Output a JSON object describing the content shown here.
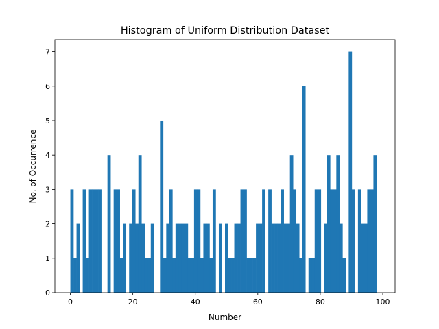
{
  "chart_data": {
    "type": "bar",
    "title": "Histogram of Uniform Distribution Dataset",
    "xlabel": "Number",
    "ylabel": "No. of Occurrence",
    "xlim": [
      -4.95,
      103.95
    ],
    "ylim": [
      0,
      7.35
    ],
    "xticks": [
      0,
      20,
      40,
      60,
      80,
      100
    ],
    "yticks": [
      0,
      1,
      2,
      3,
      4,
      5,
      6,
      7
    ],
    "bin_start": 0,
    "bin_width": 0.99,
    "color": "#1f77b4",
    "grid": false,
    "values": [
      3,
      1,
      2,
      0,
      3,
      1,
      3,
      3,
      3,
      3,
      0,
      0,
      4,
      0,
      3,
      3,
      1,
      2,
      0,
      2,
      3,
      2,
      4,
      2,
      1,
      1,
      2,
      0,
      0,
      5,
      1,
      2,
      3,
      1,
      2,
      2,
      2,
      2,
      1,
      1,
      3,
      3,
      1,
      2,
      2,
      1,
      3,
      0,
      2,
      0,
      2,
      1,
      1,
      2,
      2,
      3,
      3,
      1,
      1,
      1,
      2,
      2,
      3,
      0,
      3,
      2,
      2,
      2,
      3,
      2,
      2,
      4,
      3,
      2,
      1,
      6,
      0,
      1,
      1,
      3,
      3,
      0,
      2,
      4,
      3,
      3,
      4,
      2,
      1,
      0,
      7,
      3,
      0,
      3,
      2,
      2,
      3,
      3,
      4,
      0
    ]
  }
}
